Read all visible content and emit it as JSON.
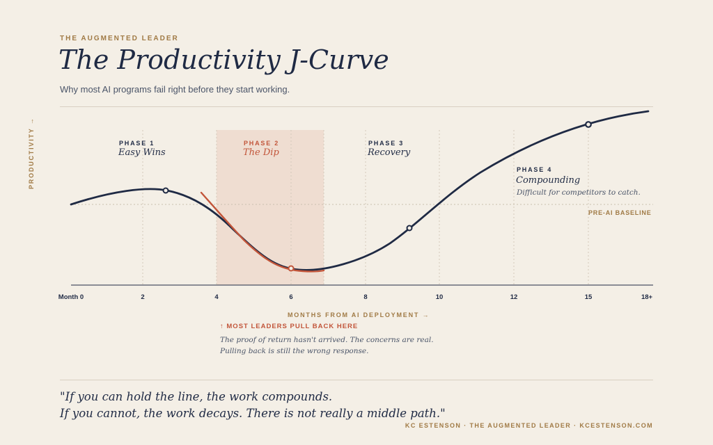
{
  "header": {
    "eyebrow": "THE AUGMENTED LEADER",
    "title": "The Productivity J-Curve",
    "subtitle": "Why most AI programs fail right before they start working."
  },
  "axes": {
    "y_label": "PRODUCTIVITY →",
    "x_label": "MONTHS FROM AI DEPLOYMENT →",
    "x_ticks": [
      "Month 0",
      "2",
      "4",
      "6",
      "8",
      "10",
      "12",
      "15",
      "18+"
    ],
    "baseline_label": "PRE-AI BASELINE"
  },
  "phases": [
    {
      "number": "PHASE 1",
      "name": "Easy Wins",
      "desc": ""
    },
    {
      "number": "PHASE 2",
      "name": "The Dip",
      "desc": ""
    },
    {
      "number": "PHASE 3",
      "name": "Recovery",
      "desc": ""
    },
    {
      "number": "PHASE 4",
      "name": "Compounding",
      "desc": "Difficult for competitors to catch."
    }
  ],
  "callout": {
    "heading": "↑ MOST LEADERS PULL BACK HERE",
    "line1": "The proof of return hasn't arrived. The concerns are real.",
    "line2": "Pulling back is still the wrong response."
  },
  "quote": {
    "line1": "\"If you can hold the line, the work compounds.",
    "line2": "If you cannot, the work decays. There is not really a middle path.\""
  },
  "footer": {
    "credit": "KC ESTENSON · THE AUGMENTED LEADER · KCESTENSON.COM"
  },
  "colors": {
    "background": "#f4efe6",
    "navy": "#1f2a44",
    "accent": "#c2553a",
    "gold": "#a07a45",
    "dip_band": "#edd9cc"
  }
}
